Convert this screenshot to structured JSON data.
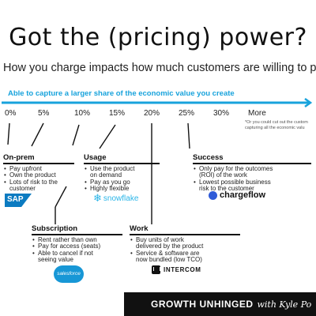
{
  "title": "Got the (pricing) power?",
  "subtitle": "How you charge impacts how much customers are willing to pa",
  "scale": {
    "band_label": "Able to capture a larger share of the economic value you create",
    "ticks": [
      "0%",
      "5%",
      "10%",
      "15%",
      "20%",
      "25%",
      "30%",
      "More"
    ],
    "note_lines": [
      "*Or you could cut out the custom",
      "capturing all the economic valu"
    ],
    "arrow_color": "#18a3dc"
  },
  "blocks": {
    "onprem": {
      "title": "On-prem",
      "items": [
        "Pay upfront",
        "Own the product",
        "Lots of risk to the",
        "customer"
      ],
      "logo": "SAP"
    },
    "usage": {
      "title": "Usage",
      "items": [
        "Use the product",
        "on demand",
        "Pay as you go",
        "Highly flexible"
      ],
      "logo": "snowflake"
    },
    "success": {
      "title": "Success",
      "items": [
        "Only pay for the outcomes",
        "(ROI) of the work",
        "Lowest possible business",
        "risk to the customer"
      ],
      "logo": "chargeflow"
    },
    "subscription": {
      "title": "Subscription",
      "items": [
        "Rent rather than own",
        "Pay for access (seats)",
        "Able to cancel if not",
        "seeing value"
      ],
      "logo": "salesforce"
    },
    "work": {
      "title": "Work",
      "items": [
        "Buy units of work",
        "delivered by the product",
        "Service & software are",
        "now bundled (low TCO)"
      ],
      "logo": "INTERCOM"
    }
  },
  "footer": {
    "brand": "GROWTH UNHINGED",
    "byline": "with Kyle Po"
  }
}
